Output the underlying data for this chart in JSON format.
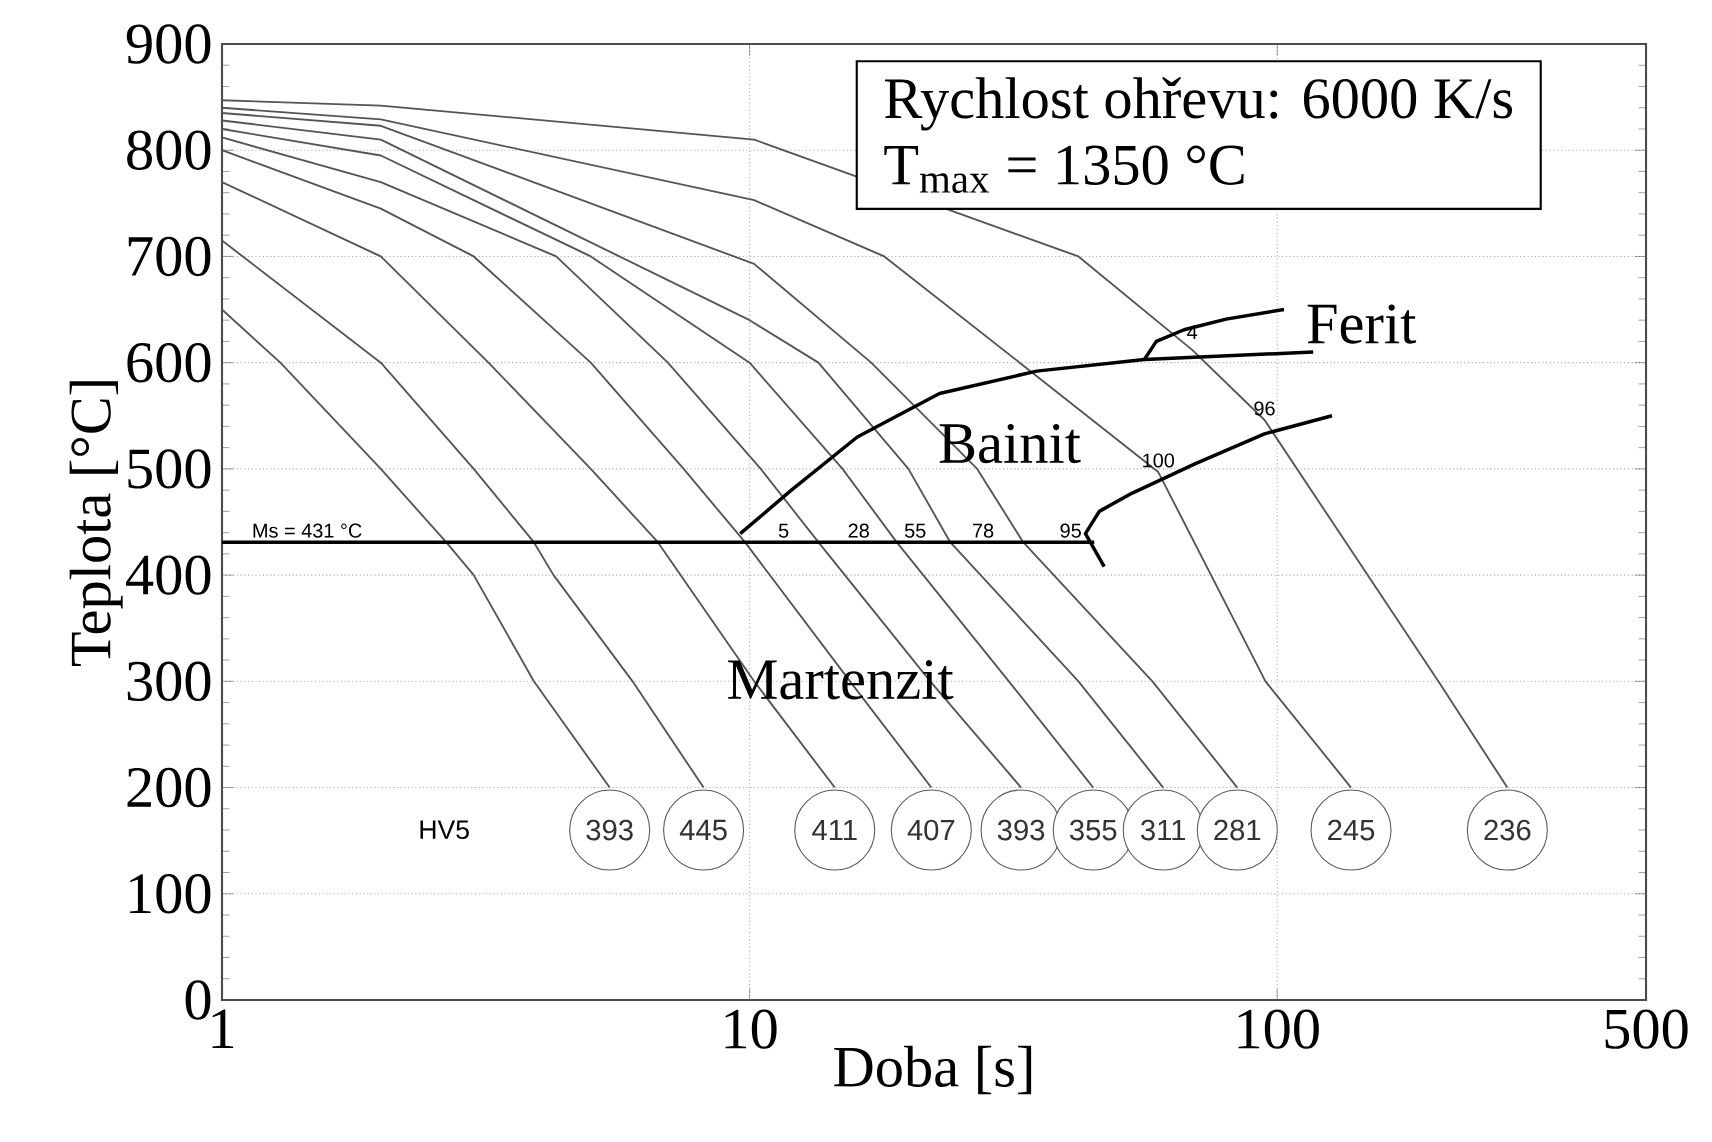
{
  "chart_data": {
    "type": "line",
    "xlabel": "Doba [s]",
    "ylabel": "Teplota [°C]",
    "log": "x",
    "grid": true,
    "xlim": [
      1,
      500
    ],
    "ylim": [
      0,
      900
    ],
    "xticks": [
      1,
      10,
      100,
      500
    ],
    "yticks": [
      0,
      100,
      200,
      300,
      400,
      500,
      600,
      700,
      800,
      900
    ],
    "series": [
      {
        "color": "#555555",
        "x": [
          1,
          1.29,
          2.0,
          2.66,
          3.0,
          3.9,
          5.43
        ],
        "values": [
          650,
          600,
          500,
          431,
          400,
          300,
          200
        ]
      },
      {
        "color": "#555555",
        "x": [
          1,
          2.0,
          3.0,
          3.9,
          4.25,
          6.0,
          8.18
        ],
        "values": [
          715,
          600,
          500,
          431,
          400,
          300,
          200
        ]
      },
      {
        "color": "#555555",
        "x": [
          1,
          2.0,
          3.2,
          5.0,
          6.7,
          10.2,
          14.5
        ],
        "values": [
          770,
          700,
          600,
          500,
          431,
          300,
          200
        ]
      },
      {
        "color": "#555555",
        "x": [
          1,
          2.0,
          3.0,
          5.0,
          7.5,
          9.8,
          15.5,
          22.1
        ],
        "values": [
          800,
          745,
          700,
          600,
          500,
          431,
          300,
          200
        ]
      },
      {
        "color": "#555555",
        "x": [
          1,
          2.0,
          4.3,
          7.0,
          10.5,
          13.5,
          22,
          32.7
        ],
        "values": [
          812,
          770,
          700,
          600,
          500,
          431,
          300,
          200
        ]
      },
      {
        "color": "#555555",
        "x": [
          1,
          2.0,
          5.0,
          10,
          15,
          19,
          31,
          44.8
        ],
        "values": [
          820,
          795,
          700,
          600,
          500,
          431,
          300,
          200
        ]
      },
      {
        "color": "#555555",
        "x": [
          1,
          2.0,
          10,
          13.5,
          20,
          24,
          42,
          60.8
        ],
        "values": [
          828,
          810,
          640,
          600,
          500,
          431,
          300,
          200
        ]
      },
      {
        "color": "#555555",
        "x": [
          1,
          2.0,
          10.2,
          17,
          27,
          33,
          58,
          84
        ],
        "values": [
          835,
          823,
          693,
          600,
          500,
          431,
          300,
          200
        ]
      },
      {
        "color": "#555555",
        "x": [
          1,
          2.0,
          10.2,
          18,
          32.5,
          59.5,
          95,
          138
        ],
        "values": [
          840,
          829,
          753,
          700,
          600,
          497,
          300,
          200
        ]
      },
      {
        "color": "#555555",
        "x": [
          1,
          2.0,
          10.2,
          42,
          69,
          94.6,
          202,
          273
        ],
        "values": [
          847,
          842,
          810,
          700,
          612,
          546,
          300,
          200
        ]
      },
      {
        "color": "#000000",
        "x": [
          1,
          45
        ],
        "values": [
          431,
          431
        ]
      },
      {
        "color": "#000000",
        "x": [
          9.6,
          12,
          16,
          22.9,
          35,
          56,
          117
        ],
        "values": [
          439,
          480,
          530,
          571,
          592,
          603,
          610
        ]
      },
      {
        "color": "#000000",
        "x": [
          56,
          59,
          66.6,
          80,
          103
        ],
        "values": [
          603,
          620,
          631,
          641,
          650
        ]
      },
      {
        "color": "#000000",
        "x": [
          47,
          43.3,
          46,
          53,
          70,
          94.6,
          127
        ],
        "values": [
          408,
          439,
          460,
          477,
          505,
          533,
          550
        ]
      }
    ],
    "annotations": [
      "Rychlost ohřevu: 6000 K/s",
      "T$_{max}$ = 1350 °C",
      "HV5",
      "Bainit",
      "Ferit",
      "Martenzit",
      {
        "text": "Ms = 431 °C",
        "x": 1.45,
        "y": 431
      },
      {
        "text": "393",
        "x": 5.43,
        "y": 160
      },
      {
        "text": "445",
        "x": 8.18,
        "y": 160
      },
      {
        "text": "411",
        "x": 14.5,
        "y": 160
      },
      {
        "text": "407",
        "x": 22.1,
        "y": 160
      },
      {
        "text": "393",
        "x": 32.7,
        "y": 160
      },
      {
        "text": "355",
        "x": 44.8,
        "y": 160
      },
      {
        "text": "311",
        "x": 60.8,
        "y": 160
      },
      {
        "text": "281",
        "x": 84,
        "y": 160
      },
      {
        "text": "245",
        "x": 138,
        "y": 160
      },
      {
        "text": "236",
        "x": 273,
        "y": 160
      },
      {
        "text": "5",
        "x": 11.6,
        "y": 431
      },
      {
        "text": "28",
        "x": 16.1,
        "y": 431
      },
      {
        "text": "55",
        "x": 20.6,
        "y": 431
      },
      {
        "text": "78",
        "x": 27.7,
        "y": 431
      },
      {
        "text": "95",
        "x": 40.6,
        "y": 431
      },
      {
        "text": "100",
        "x": 59.5,
        "y": 497
      },
      {
        "text": "96",
        "x": 94.6,
        "y": 546
      },
      {
        "text": "4",
        "x": 69,
        "y": 618
      }
    ]
  }
}
